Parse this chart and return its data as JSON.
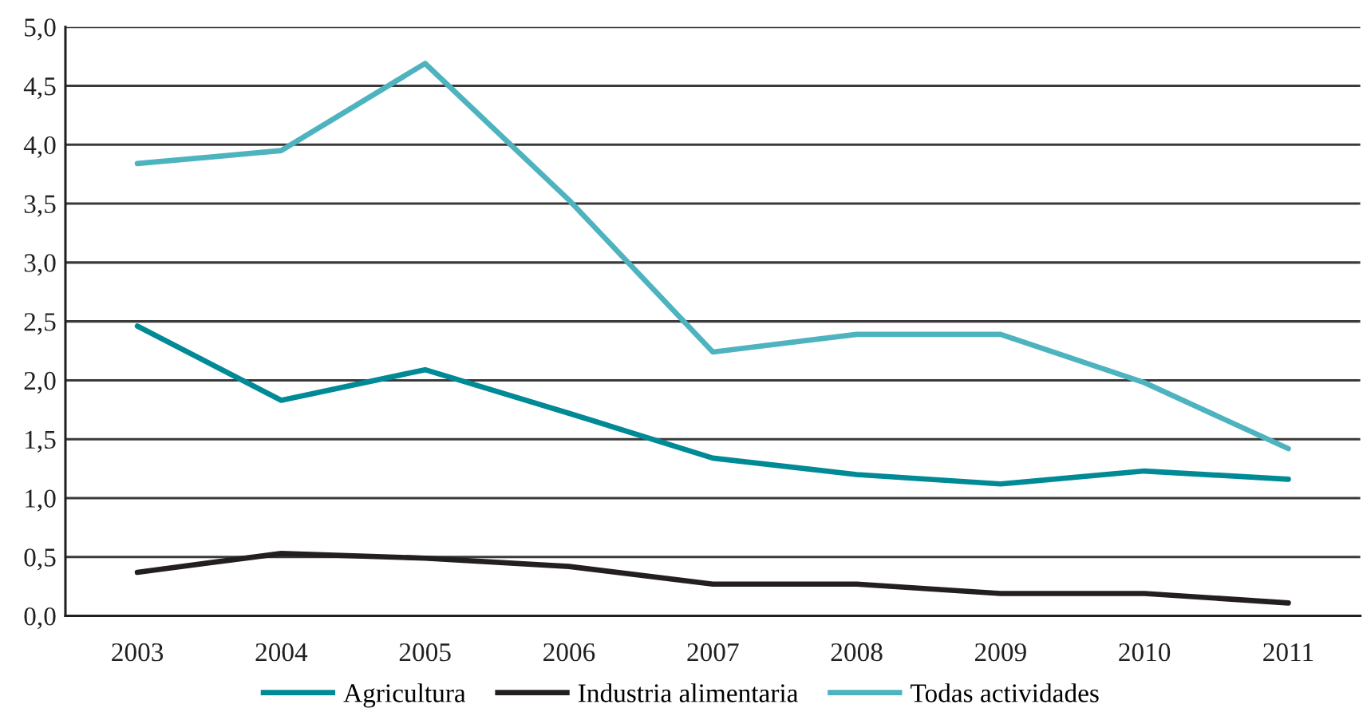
{
  "chart_data": {
    "type": "line",
    "categories": [
      "2003",
      "2004",
      "2005",
      "2006",
      "2007",
      "2008",
      "2009",
      "2010",
      "2011"
    ],
    "series": [
      {
        "name": "Agricultura",
        "color": "#008a95",
        "values": [
          2.46,
          1.83,
          2.09,
          1.72,
          1.34,
          1.2,
          1.12,
          1.23,
          1.16
        ]
      },
      {
        "name": "Industria alimentaria",
        "color": "#231f20",
        "values": [
          0.37,
          0.53,
          0.49,
          0.42,
          0.27,
          0.27,
          0.19,
          0.19,
          0.11
        ]
      },
      {
        "name": "Todas actividades",
        "color": "#4db3bf",
        "values": [
          3.84,
          3.95,
          4.69,
          3.53,
          2.24,
          2.39,
          2.39,
          1.98,
          1.42
        ]
      }
    ],
    "ylim": [
      0,
      5
    ],
    "yticks": [
      {
        "value": 0,
        "label": "0,0"
      },
      {
        "value": 0.5,
        "label": "0,5"
      },
      {
        "value": 1,
        "label": "1,0"
      },
      {
        "value": 1.5,
        "label": "1,5"
      },
      {
        "value": 2,
        "label": "2,0"
      },
      {
        "value": 2.5,
        "label": "2,5"
      },
      {
        "value": 3,
        "label": "3,0"
      },
      {
        "value": 3.5,
        "label": "3,5"
      },
      {
        "value": 4,
        "label": "4,0"
      },
      {
        "value": 4.5,
        "label": "4,5"
      },
      {
        "value": 5,
        "label": "5,0"
      }
    ],
    "grid": "y",
    "legend": "bottom",
    "marker": "none",
    "line_style": "solid"
  }
}
